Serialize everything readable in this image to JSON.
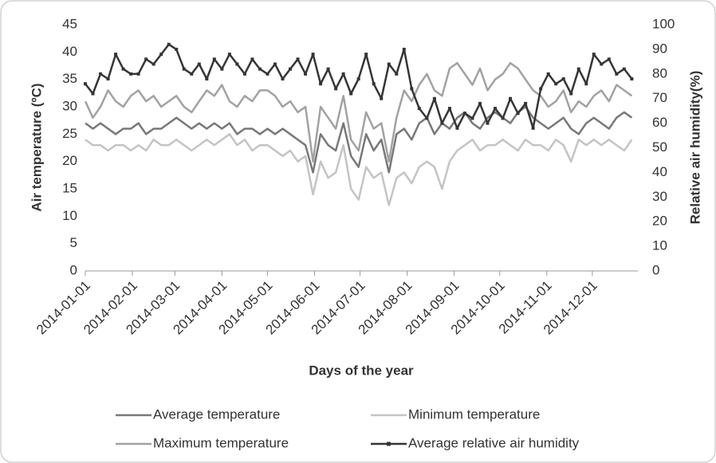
{
  "chart_data": {
    "type": "line",
    "x_label": "Days of the year",
    "y_label": "Air temperature (ºC)",
    "y2_label": "Relative air humidity(%)",
    "x": [
      "2014-01-01",
      "2014-01-06",
      "2014-01-11",
      "2014-01-16",
      "2014-01-21",
      "2014-01-26",
      "2014-01-31",
      "2014-02-05",
      "2014-02-10",
      "2014-02-15",
      "2014-02-20",
      "2014-02-25",
      "2014-03-02",
      "2014-03-07",
      "2014-03-12",
      "2014-03-17",
      "2014-03-22",
      "2014-03-27",
      "2014-04-01",
      "2014-04-06",
      "2014-04-11",
      "2014-04-16",
      "2014-04-21",
      "2014-04-26",
      "2014-05-01",
      "2014-05-06",
      "2014-05-11",
      "2014-05-16",
      "2014-05-21",
      "2014-05-26",
      "2014-05-31",
      "2014-06-05",
      "2014-06-10",
      "2014-06-15",
      "2014-06-20",
      "2014-06-25",
      "2014-06-30",
      "2014-07-05",
      "2014-07-10",
      "2014-07-15",
      "2014-07-20",
      "2014-07-25",
      "2014-07-30",
      "2014-08-04",
      "2014-08-09",
      "2014-08-14",
      "2014-08-19",
      "2014-08-24",
      "2014-08-29",
      "2014-09-03",
      "2014-09-08",
      "2014-09-13",
      "2014-09-18",
      "2014-09-23",
      "2014-09-28",
      "2014-10-03",
      "2014-10-08",
      "2014-10-13",
      "2014-10-18",
      "2014-10-23",
      "2014-10-28",
      "2014-11-02",
      "2014-11-07",
      "2014-11-12",
      "2014-11-17",
      "2014-11-22",
      "2014-11-27",
      "2014-12-02",
      "2014-12-07",
      "2014-12-12",
      "2014-12-17",
      "2014-12-22",
      "2014-12-27"
    ],
    "xlim": [
      "2014-01-01",
      "2014-12-31"
    ],
    "xticks": [
      "2014-01-01",
      "2014-02-01",
      "2014-03-01",
      "2014-04-01",
      "2014-05-01",
      "2014-06-01",
      "2014-07-01",
      "2014-08-01",
      "2014-09-01",
      "2014-10-01",
      "2014-11-01",
      "2014-12-01"
    ],
    "ylim": [
      0,
      45
    ],
    "yticks": [
      0,
      5,
      10,
      15,
      20,
      25,
      30,
      35,
      40,
      45
    ],
    "y2lim": [
      0,
      100
    ],
    "y2ticks": [
      0,
      10,
      20,
      30,
      40,
      50,
      60,
      70,
      80,
      90,
      100
    ],
    "series": [
      {
        "name": "Average temperature",
        "color": "#787878",
        "values": [
          27,
          26,
          27,
          26,
          25,
          26,
          26,
          27,
          25,
          26,
          26,
          27,
          28,
          27,
          26,
          27,
          26,
          27,
          26,
          27,
          25,
          26,
          26,
          25,
          26,
          25,
          26,
          25,
          24,
          23,
          18,
          25,
          23,
          22,
          27,
          21,
          19,
          25,
          22,
          24,
          18,
          25,
          26,
          24,
          27,
          28,
          25,
          27,
          26,
          28,
          29,
          27,
          26,
          28,
          29,
          28,
          27,
          29,
          30,
          28,
          27,
          26,
          27,
          28,
          26,
          25,
          27,
          28,
          27,
          26,
          28,
          29,
          28
        ]
      },
      {
        "name": "Minimum temperature",
        "color": "#c4c4c4",
        "values": [
          24,
          23,
          23,
          22,
          23,
          23,
          22,
          23,
          22,
          24,
          23,
          23,
          24,
          23,
          22,
          23,
          24,
          23,
          24,
          25,
          23,
          24,
          22,
          23,
          23,
          22,
          21,
          22,
          20,
          21,
          14,
          20,
          17,
          18,
          23,
          15,
          13,
          19,
          17,
          18,
          12,
          17,
          18,
          16,
          19,
          20,
          19,
          15,
          20,
          22,
          23,
          24,
          22,
          23,
          23,
          24,
          23,
          22,
          24,
          23,
          23,
          22,
          24,
          23,
          20,
          24,
          23,
          24,
          23,
          24,
          23,
          22,
          24
        ]
      },
      {
        "name": "Maximum temperature",
        "color": "#a2a2a2",
        "values": [
          31,
          28,
          30,
          33,
          31,
          30,
          32,
          33,
          31,
          32,
          30,
          31,
          32,
          30,
          29,
          31,
          33,
          32,
          34,
          31,
          30,
          32,
          31,
          33,
          33,
          32,
          30,
          31,
          29,
          30,
          20,
          30,
          28,
          26,
          32,
          24,
          22,
          29,
          26,
          27,
          20,
          28,
          33,
          31,
          34,
          36,
          33,
          32,
          37,
          38,
          36,
          34,
          37,
          33,
          35,
          36,
          38,
          37,
          35,
          33,
          32,
          30,
          31,
          33,
          29,
          31,
          30,
          32,
          33,
          31,
          34,
          33,
          32
        ]
      },
      {
        "name": "Average relative air humidity",
        "color": "#353535",
        "axis": "y2",
        "values": [
          76,
          72,
          80,
          78,
          88,
          82,
          80,
          80,
          86,
          84,
          88,
          92,
          90,
          82,
          80,
          84,
          78,
          86,
          82,
          88,
          84,
          80,
          86,
          82,
          80,
          84,
          78,
          82,
          86,
          80,
          88,
          76,
          82,
          74,
          80,
          72,
          78,
          88,
          76,
          70,
          84,
          80,
          90,
          74,
          66,
          62,
          70,
          60,
          66,
          58,
          64,
          62,
          68,
          60,
          66,
          62,
          70,
          64,
          68,
          58,
          74,
          80,
          76,
          78,
          72,
          82,
          76,
          88,
          84,
          86,
          80,
          82,
          78
        ]
      }
    ]
  }
}
